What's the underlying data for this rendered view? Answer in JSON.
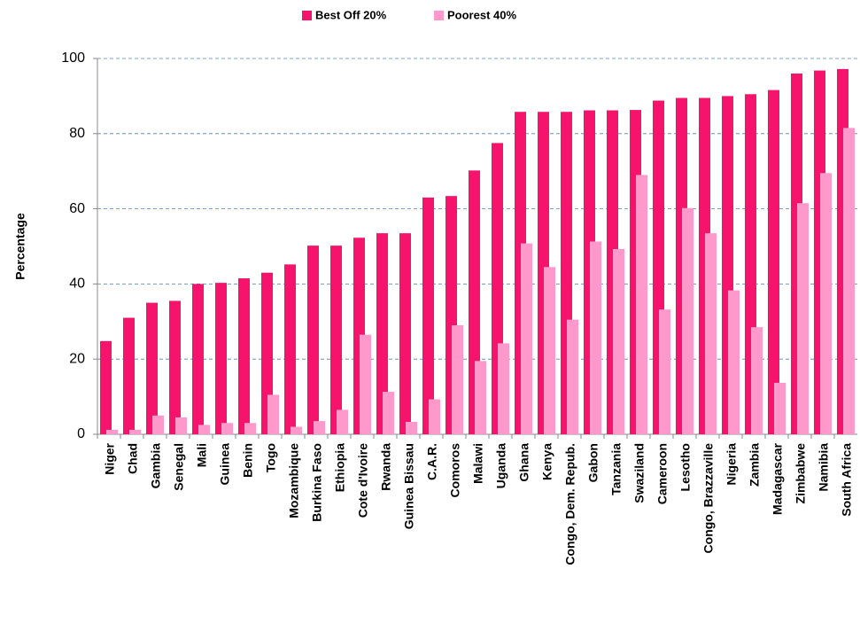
{
  "chart_data": {
    "type": "bar",
    "y_label": "Percentage",
    "categories": [
      "Niger",
      "Chad",
      "Gambia",
      "Senegal",
      "Mali",
      "Guinea",
      "Benin",
      "Togo",
      "Mozambique",
      "Burkina Faso",
      "Ethiopia",
      "Cote d'Ivoire",
      "Rwanda",
      "Guinea Bissau",
      "C.A.R.",
      "Comoros",
      "Malawi",
      "Uganda",
      "Ghana",
      "Kenya",
      "Congo, Dem. Repub.",
      "Gabon",
      "Tanzania",
      "Swaziland",
      "Cameroon",
      "Lesotho",
      "Congo, Brazzaville",
      "Nigeria",
      "Zambia",
      "Madagascar",
      "Zimbabwe",
      "Namibia",
      "South Africa"
    ],
    "series": [
      {
        "name": "Best Off 20%",
        "color": "#f5136c",
        "values": [
          24.8,
          31,
          35,
          35.5,
          40,
          40.3,
          41.5,
          43,
          45.2,
          50.2,
          50.2,
          52.3,
          53.5,
          53.5,
          63,
          63.4,
          70.2,
          77.5,
          85.8,
          85.8,
          85.8,
          86.2,
          86.2,
          86.3,
          88.8,
          89.5,
          89.5,
          90,
          90.5,
          91.6,
          96,
          96.8,
          97.2
        ]
      },
      {
        "name": "Poorest  40%",
        "color": "#ff99cc",
        "values": [
          1.2,
          1.2,
          5,
          4.5,
          2.5,
          3,
          3,
          10.5,
          2,
          3.5,
          6.5,
          26.5,
          11.3,
          3.3,
          9.3,
          29,
          19.5,
          24.2,
          50.8,
          44.5,
          30.5,
          51.3,
          49.3,
          69,
          33.2,
          60.2,
          53.5,
          38.3,
          28.5,
          13.7,
          61.5,
          69.5,
          81.5
        ]
      }
    ],
    "ylim": [
      0,
      100
    ],
    "yticks": [
      0,
      20,
      40,
      60,
      80,
      100
    ],
    "grid": true
  }
}
